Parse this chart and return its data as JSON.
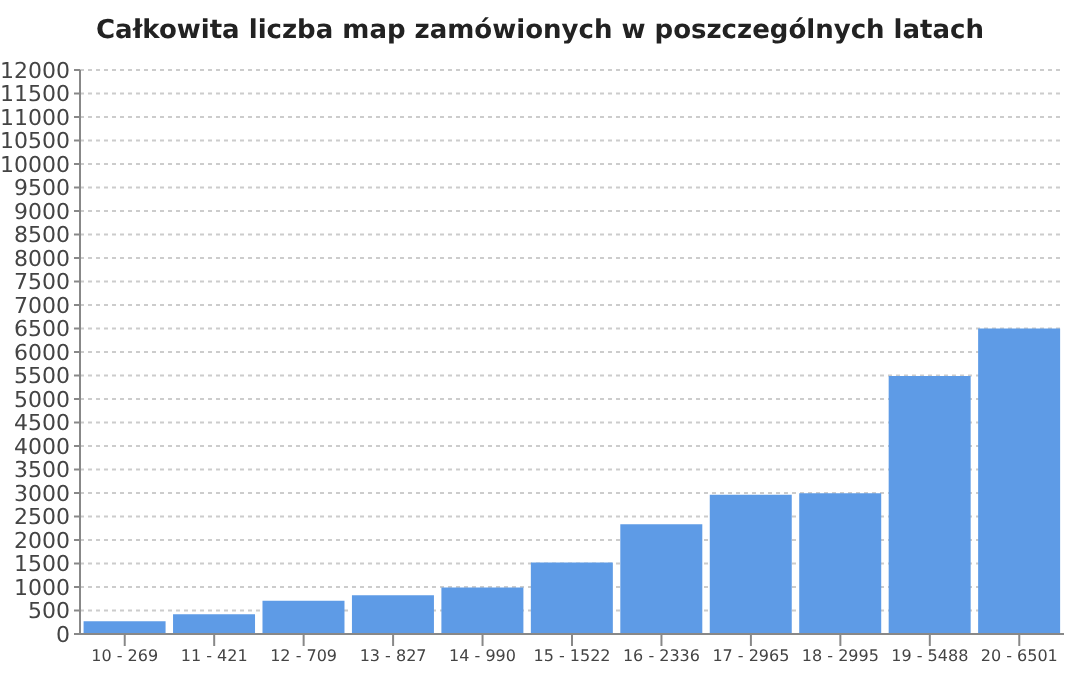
{
  "chart_data": {
    "type": "bar",
    "title": "Całkowita liczba map zamówionych w poszczególnych latach",
    "categories": [
      "10 - 269",
      "11 - 421",
      "12 - 709",
      "13 - 827",
      "14 - 990",
      "15 - 1522",
      "16 - 2336",
      "17 - 2965",
      "18 - 2995",
      "19 - 5488",
      "20 - 6501"
    ],
    "values": [
      269,
      421,
      709,
      827,
      990,
      1522,
      2336,
      2965,
      2995,
      5488,
      6501
    ],
    "color": "#5e9be6",
    "ylim": [
      0,
      12000
    ],
    "yticks": [
      0,
      500,
      1000,
      1500,
      2000,
      2500,
      3000,
      3500,
      4000,
      4500,
      5000,
      5500,
      6000,
      6500,
      7000,
      7500,
      8000,
      8500,
      9000,
      9500,
      10000,
      10500,
      11000,
      11500,
      12000
    ],
    "grid": "y"
  }
}
